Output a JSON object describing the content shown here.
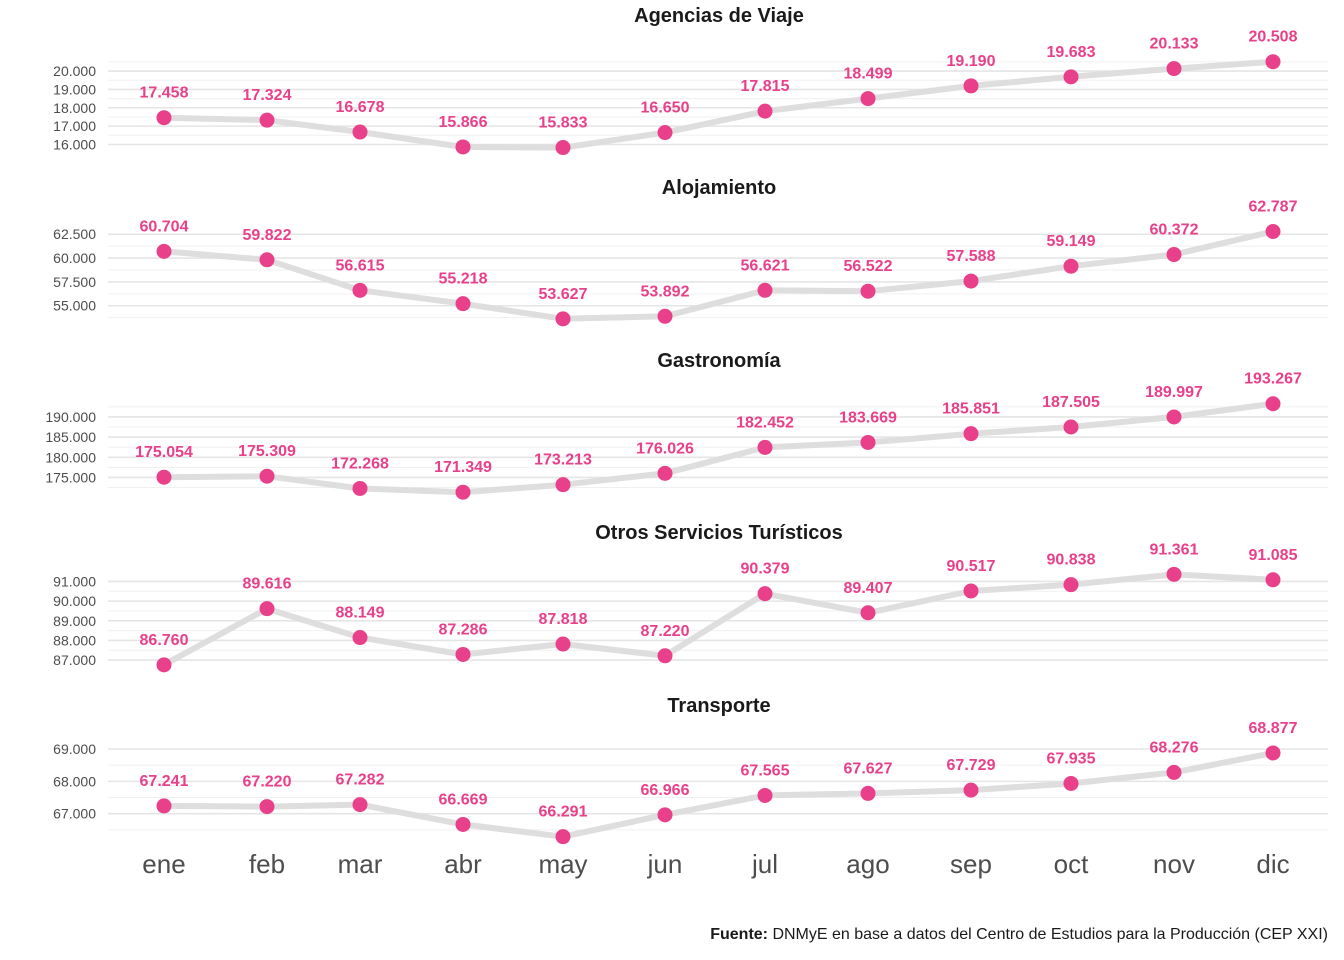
{
  "chart_data": {
    "type": "line",
    "categories": [
      "ene",
      "feb",
      "mar",
      "abr",
      "may",
      "jun",
      "jul",
      "ago",
      "sep",
      "oct",
      "nov",
      "dic"
    ],
    "colors": {
      "point": "#e8408a",
      "line": "#dedede",
      "grid": "#e5e5e5"
    },
    "panels": [
      {
        "title": "Agencias de Viaje",
        "values": [
          17458,
          17324,
          16678,
          15866,
          15833,
          16650,
          17815,
          18499,
          19190,
          19683,
          20133,
          20508
        ],
        "labels": [
          "17.458",
          "17.324",
          "16.678",
          "15.866",
          "15.833",
          "16.650",
          "17.815",
          "18.499",
          "19.190",
          "19.683",
          "20.133",
          "20.508"
        ],
        "ticks": [
          16000,
          17000,
          18000,
          19000,
          20000
        ],
        "tick_labels": [
          "16.000",
          "17.000",
          "18.000",
          "19.000",
          "20.000"
        ],
        "ylim": [
          15700,
          20600
        ]
      },
      {
        "title": "Alojamiento",
        "values": [
          60704,
          59822,
          56615,
          55218,
          53627,
          53892,
          56621,
          56522,
          57588,
          59149,
          60372,
          62787
        ],
        "labels": [
          "60.704",
          "59.822",
          "56.615",
          "55.218",
          "53.627",
          "53.892",
          "56.621",
          "56.522",
          "57.588",
          "59.149",
          "60.372",
          "62.787"
        ],
        "ticks": [
          55000,
          57500,
          60000,
          62500
        ],
        "tick_labels": [
          "55.000",
          "57.500",
          "60.000",
          "62.500"
        ],
        "ylim": [
          53400,
          63050
        ]
      },
      {
        "title": "Gastronomía",
        "values": [
          175054,
          175309,
          172268,
          171349,
          173213,
          176026,
          182452,
          183669,
          185851,
          187505,
          189997,
          193267
        ],
        "labels": [
          "175.054",
          "175.309",
          "172.268",
          "171.349",
          "173.213",
          "176.026",
          "182.452",
          "183.669",
          "185.851",
          "187.505",
          "189.997",
          "193.267"
        ],
        "ticks": [
          175000,
          180000,
          185000,
          190000
        ],
        "tick_labels": [
          "175.000",
          "180.000",
          "185.000",
          "190.000"
        ],
        "ylim": [
          170900,
          193700
        ]
      },
      {
        "title": "Otros Servicios Turísticos",
        "values": [
          86760,
          89616,
          88149,
          87286,
          87818,
          87220,
          90379,
          89407,
          90517,
          90838,
          91361,
          91085
        ],
        "labels": [
          "86.760",
          "89.616",
          "88.149",
          "87.286",
          "87.818",
          "87.220",
          "90.379",
          "89.407",
          "90.517",
          "90.838",
          "91.361",
          "91.085"
        ],
        "ticks": [
          87000,
          88000,
          89000,
          90000,
          91000
        ],
        "tick_labels": [
          "87.000",
          "88.000",
          "89.000",
          "90.000",
          "91.000"
        ],
        "ylim": [
          86700,
          91430
        ]
      },
      {
        "title": "Transporte",
        "values": [
          67241,
          67220,
          67282,
          66669,
          66291,
          66966,
          67565,
          67627,
          67729,
          67935,
          68276,
          68877
        ],
        "labels": [
          "67.241",
          "67.220",
          "67.282",
          "66.669",
          "66.291",
          "66.966",
          "67.565",
          "67.627",
          "67.729",
          "67.935",
          "68.276",
          "68.877"
        ],
        "ticks": [
          67000,
          68000,
          69000
        ],
        "tick_labels": [
          "67.000",
          "68.000",
          "69.000"
        ],
        "ylim": [
          66250,
          69000
        ]
      }
    ]
  },
  "source": {
    "label": "Fuente:",
    "text": " DNMyE en base a datos del Centro de Estudios para la Producción (CEP XXI)"
  }
}
